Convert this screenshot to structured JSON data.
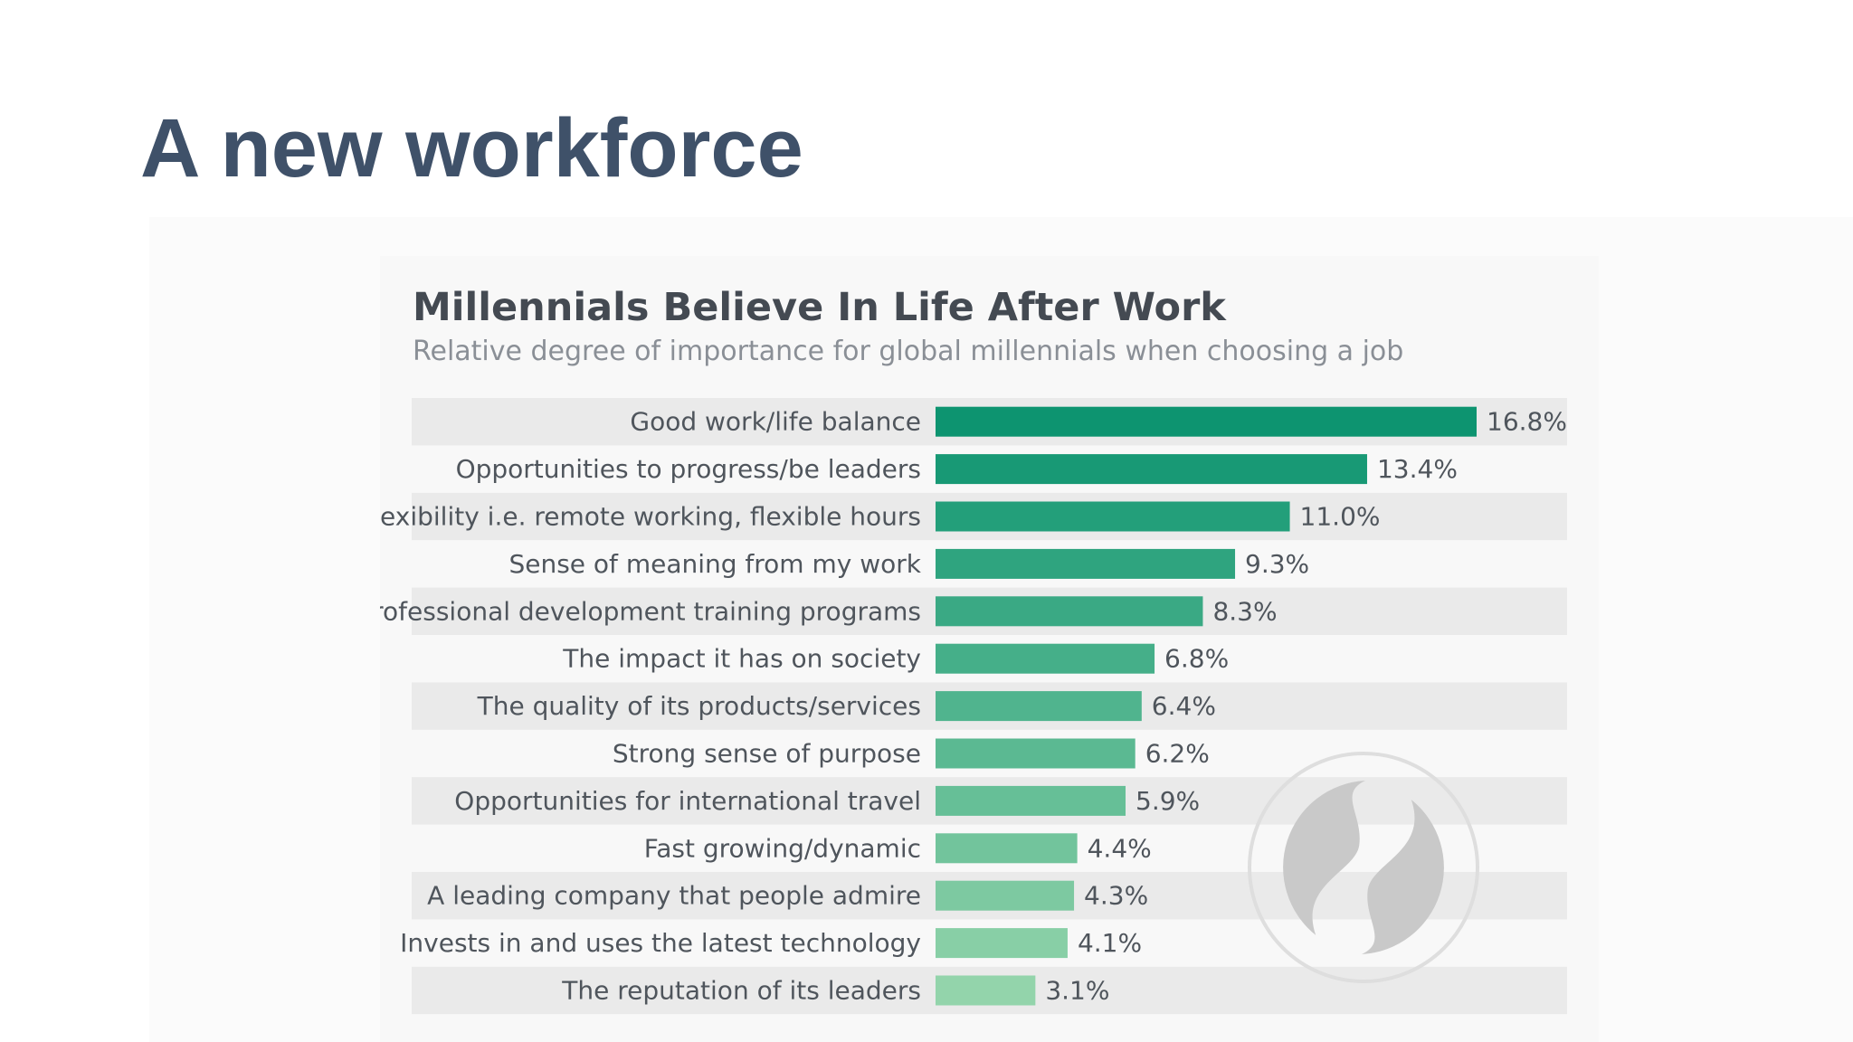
{
  "slide": {
    "title": "A new workforce"
  },
  "chart_data": {
    "type": "bar",
    "orientation": "horizontal",
    "title": "Millennials Believe In Life After Work",
    "subtitle": "Relative degree of importance for global millennials when choosing a job",
    "categories": [
      "Good work/life balance",
      "Opportunities to progress/be leaders",
      "Flexibility i.e. remote working, flexible hours",
      "Sense of meaning from my work",
      "Professional development training programs",
      "The impact it has on society",
      "The quality of its products/services",
      "Strong sense of purpose",
      "Opportunities for international travel",
      "Fast growing/dynamic",
      "A leading company that people admire",
      "Invests in and uses the latest technology",
      "The reputation of its leaders"
    ],
    "values": [
      16.8,
      13.4,
      11.0,
      9.3,
      8.3,
      6.8,
      6.4,
      6.2,
      5.9,
      4.4,
      4.3,
      4.1,
      3.1
    ],
    "value_labels": [
      "16.8%",
      "13.4%",
      "11.0%",
      "9.3%",
      "8.3%",
      "6.8%",
      "6.4%",
      "6.2%",
      "5.9%",
      "4.4%",
      "4.3%",
      "4.1%",
      "3.1%"
    ],
    "xlim": [
      0,
      16.8
    ],
    "grid": false,
    "legend": "none",
    "colors": {
      "bar_start": "#0d9470",
      "bar_end": "#93d4ab",
      "row_stripe": "#eaeaea",
      "logo": "#c9c9c9"
    },
    "watermark": "statista-logo-icon"
  }
}
